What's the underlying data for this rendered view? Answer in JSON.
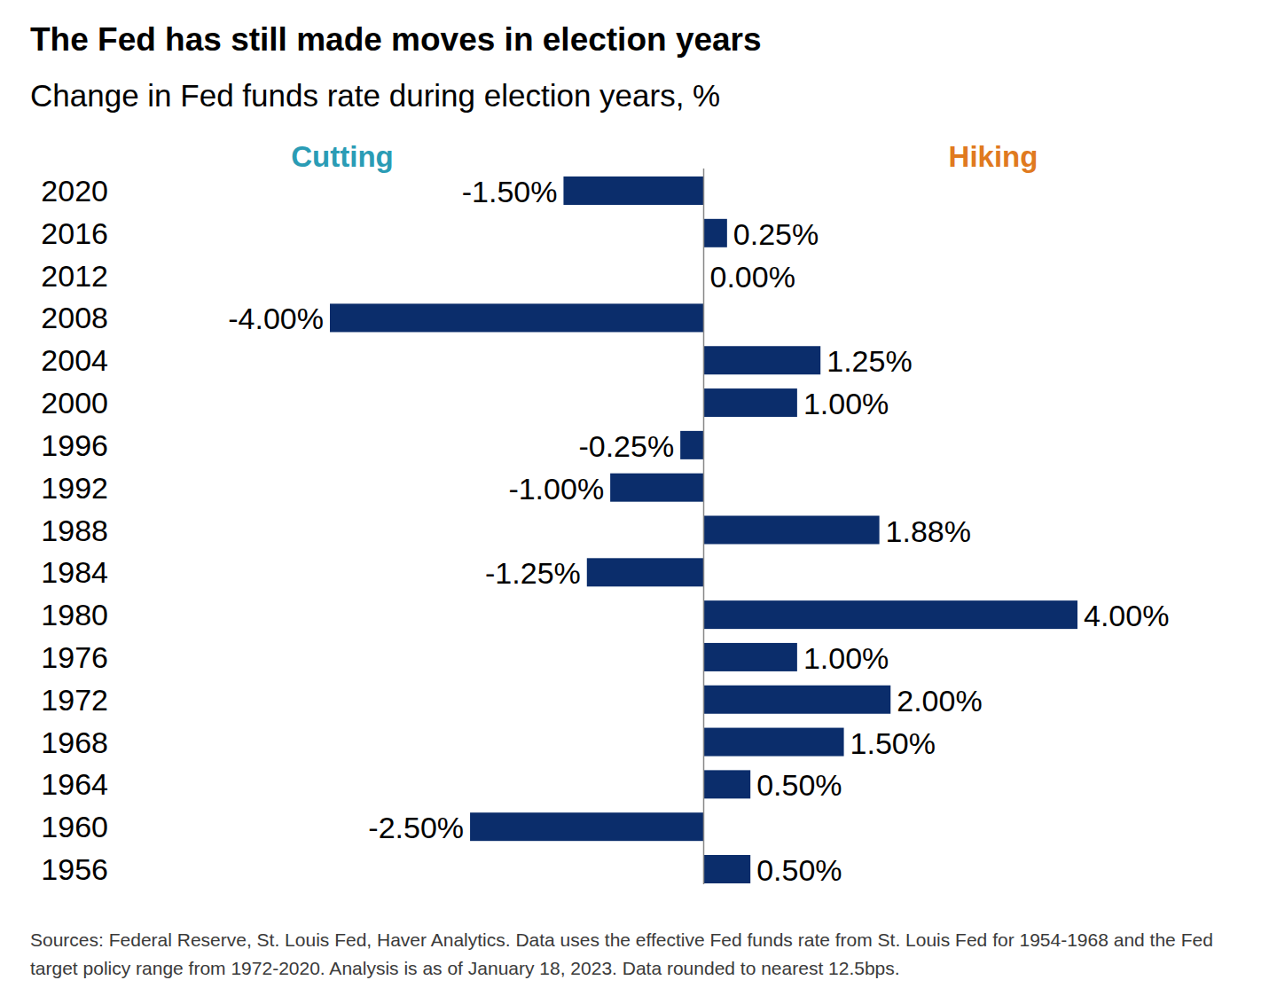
{
  "chart_data": {
    "type": "bar",
    "orientation": "horizontal",
    "title": "The Fed has still made moves in election years",
    "subtitle": "Change in Fed funds rate during election years, %",
    "annotations": [
      {
        "text": "Cutting",
        "color": "#2a9cb5"
      },
      {
        "text": "Hiking",
        "color": "#e07a1f"
      }
    ],
    "categories": [
      "2020",
      "2016",
      "2012",
      "2008",
      "2004",
      "2000",
      "1996",
      "1992",
      "1988",
      "1984",
      "1980",
      "1976",
      "1972",
      "1968",
      "1964",
      "1960",
      "1956"
    ],
    "values": [
      -1.5,
      0.25,
      0,
      -4,
      1.25,
      1,
      -0.25,
      -1,
      1.88,
      -1.25,
      4,
      1,
      2,
      1.5,
      0.5,
      -2.5,
      0.5
    ],
    "value_labels": [
      "-1.50%",
      "0.25%",
      "0.00%",
      "-4.00%",
      "1.25%",
      "1.00%",
      "-0.25%",
      "-1.00%",
      "1.88%",
      "-1.25%",
      "4.00%",
      "1.00%",
      "2.00%",
      "1.50%",
      "0.50%",
      "-2.50%",
      "0.50%"
    ],
    "color": "#0b2d6b",
    "xlim": [
      -4,
      4
    ],
    "grid": false,
    "data_labels": true,
    "tick_labels": "y",
    "note": "Sources: Federal Reserve, St. Louis Fed, Haver Analytics. Data uses the effective Fed funds rate from St. Louis Fed for 1954-1968 and the Fed target policy range from 1972-2020. Analysis is as of January 18, 2023. Data rounded to nearest 12.5bps."
  }
}
